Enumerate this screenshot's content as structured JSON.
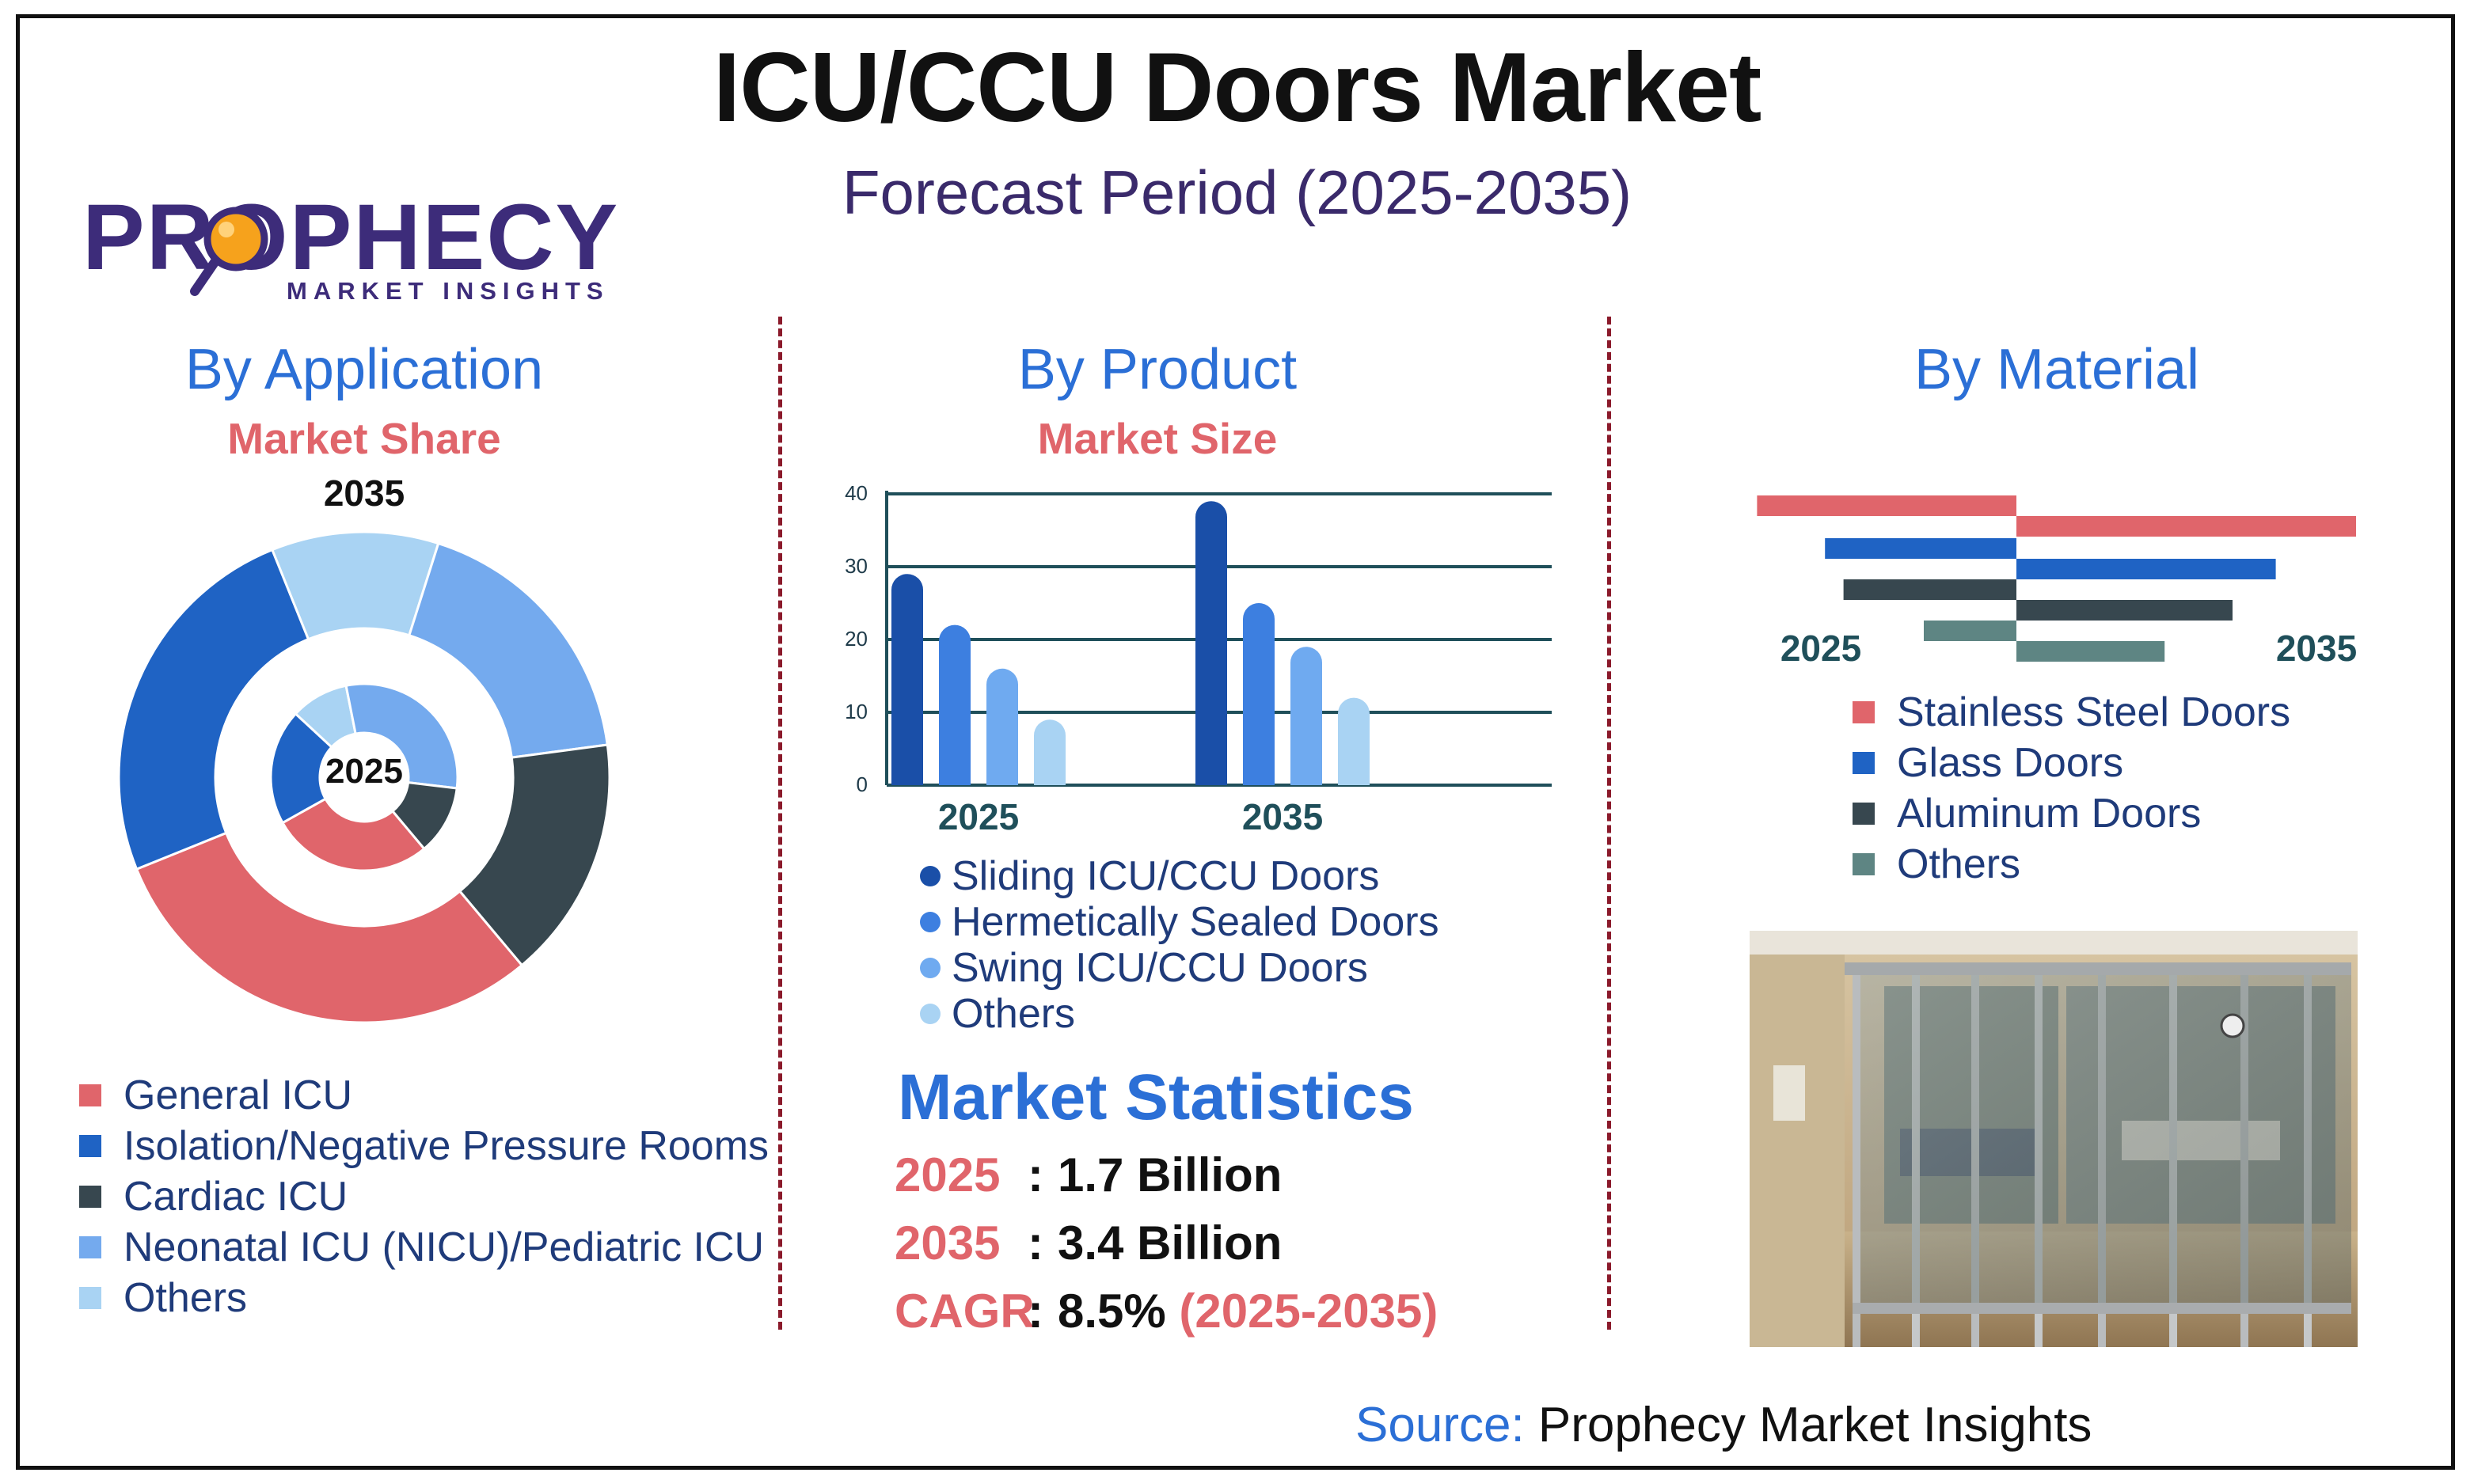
{
  "header": {
    "title": "ICU/CCU Doors Market",
    "subtitle": "Forecast Period (2025-2035)"
  },
  "logo": {
    "word": "PROPHECY",
    "tagline": "MARKET INSIGHTS"
  },
  "sections": {
    "application": {
      "title": "By Application",
      "subtitle": "Market Share",
      "outer_label": "2035",
      "inner_label": "2025"
    },
    "product": {
      "title": "By Product",
      "subtitle": "Market Size"
    },
    "material": {
      "title": "By Material",
      "left_label": "2025",
      "right_label": "2035"
    }
  },
  "colors": {
    "red": "#e0656b",
    "blue": "#1f63c4",
    "dark_slate": "#37474f",
    "light_blue": "#74aaee",
    "pale_blue": "#a9d3f3",
    "teal": "#5e8583",
    "product_navy": "#1a4fa8",
    "product_blue": "#3d7fe0",
    "product_sky": "#6faaf0",
    "product_pale": "#a9d3f3",
    "axis": "#1f4f5a"
  },
  "chart_data": [
    {
      "type": "pie",
      "name": "By Application",
      "rings": [
        {
          "label": "2035",
          "values": [
            0.3,
            0.25,
            0.11,
            0.18,
            0.16
          ]
        },
        {
          "label": "2025",
          "values": [
            0.28,
            0.2,
            0.1,
            0.3,
            0.12
          ]
        }
      ],
      "categories": [
        "General ICU",
        "Isolation/Negative Pressure Rooms",
        "Others",
        "Neonatal ICU (NICU)/Pediatric ICU",
        "Cardiac ICU"
      ]
    },
    {
      "type": "bar",
      "name": "By Product",
      "categories": [
        "2025",
        "2035"
      ],
      "ylim": [
        0,
        40
      ],
      "yticks": [
        0,
        10,
        20,
        30,
        40
      ],
      "series": [
        {
          "name": "Sliding ICU/CCU Doors",
          "values": [
            29,
            39
          ]
        },
        {
          "name": "Hermetically Sealed Doors",
          "values": [
            22,
            25
          ]
        },
        {
          "name": "Swing ICU/CCU Doors",
          "values": [
            16,
            19
          ]
        },
        {
          "name": "Others",
          "values": [
            9,
            12
          ]
        }
      ]
    },
    {
      "type": "bar",
      "name": "By Material",
      "orientation": "horizontal-butterfly",
      "categories": [
        "Stainless Steel Doors",
        "Glass Doors",
        "Aluminum Doors",
        "Others"
      ],
      "series": [
        {
          "name": "2025",
          "values": [
            0.42,
            0.31,
            0.28,
            0.15
          ]
        },
        {
          "name": "2035",
          "values": [
            0.55,
            0.42,
            0.35,
            0.24
          ]
        }
      ]
    }
  ],
  "legends": {
    "application": [
      "General ICU",
      "Isolation/Negative Pressure Rooms",
      "Cardiac ICU",
      "Neonatal ICU (NICU)/Pediatric ICU",
      "Others"
    ],
    "product": [
      "Sliding ICU/CCU Doors",
      "Hermetically Sealed Doors",
      "Swing ICU/CCU Doors",
      "Others"
    ],
    "material": [
      "Stainless Steel Doors",
      "Glass Doors",
      "Aluminum Doors",
      "Others"
    ]
  },
  "stats": {
    "title": "Market Statistics",
    "rows": [
      {
        "key": "2025",
        "value": "1.7 Billion",
        "extra": ""
      },
      {
        "key": "2035",
        "value": "3.4 Billion",
        "extra": ""
      },
      {
        "key": "CAGR",
        "value": "8.5%",
        "extra": "(2025-2035)"
      }
    ]
  },
  "source": {
    "label": "Source:",
    "text": "Prophecy Market Insights"
  }
}
